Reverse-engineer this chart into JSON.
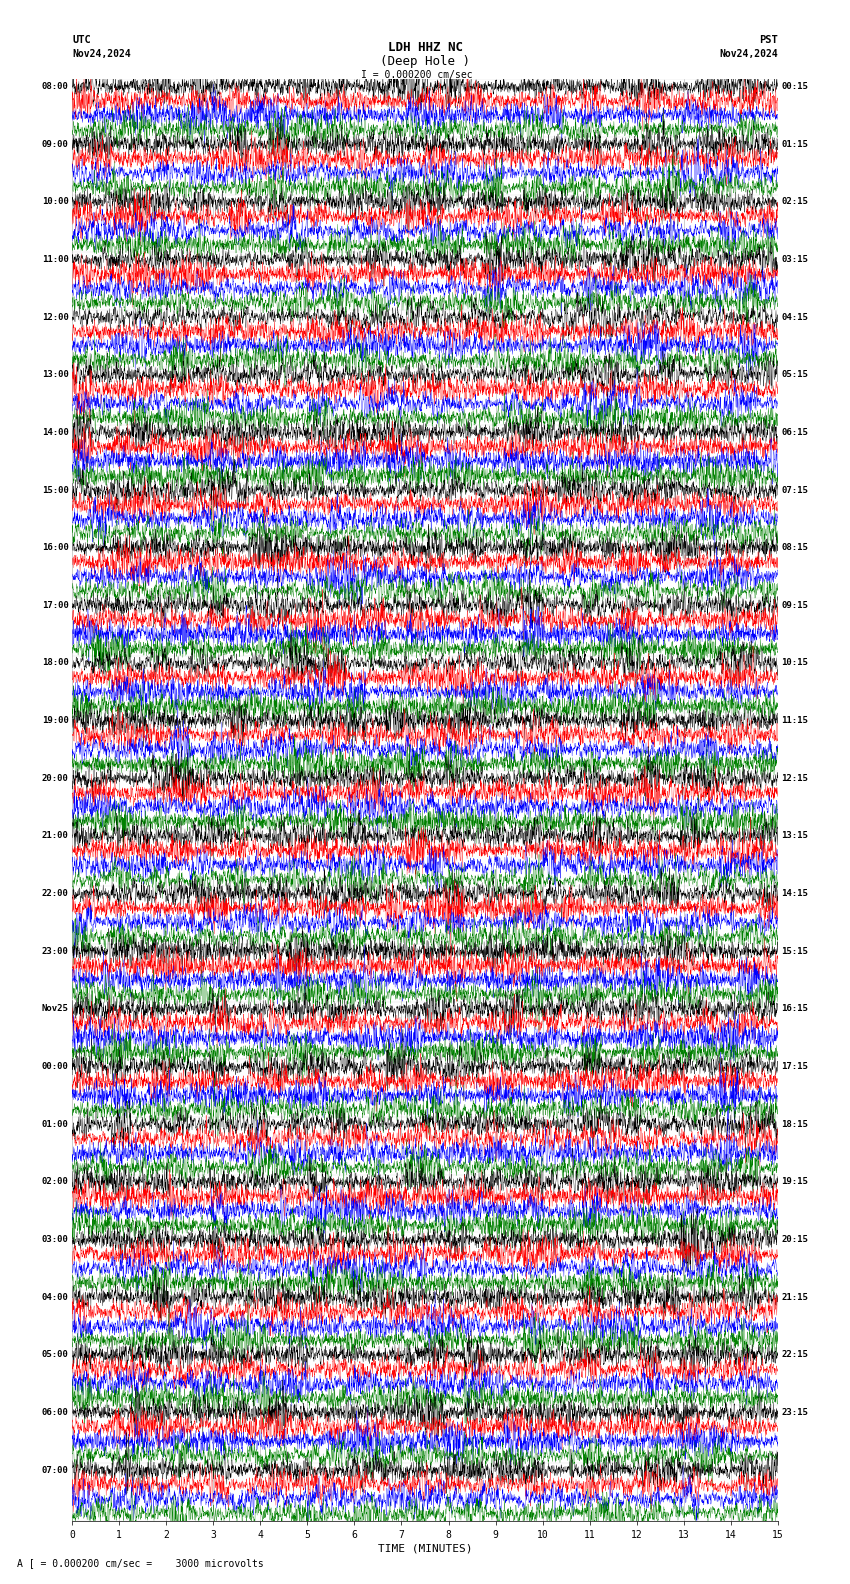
{
  "title_line1": "LDH HHZ NC",
  "title_line2": "(Deep Hole )",
  "scale_label": "I = 0.000200 cm/sec",
  "utc_label": "UTC",
  "pst_label": "PST",
  "date_left": "Nov24,2024",
  "date_right": "Nov24,2024",
  "bottom_label": "A [ = 0.000200 cm/sec =    3000 microvolts",
  "xlabel": "TIME (MINUTES)",
  "xticks": [
    0,
    1,
    2,
    3,
    4,
    5,
    6,
    7,
    8,
    9,
    10,
    11,
    12,
    13,
    14,
    15
  ],
  "colors": [
    "black",
    "red",
    "blue",
    "green"
  ],
  "left_times": [
    "08:00",
    "09:00",
    "10:00",
    "11:00",
    "12:00",
    "13:00",
    "14:00",
    "15:00",
    "16:00",
    "17:00",
    "18:00",
    "19:00",
    "20:00",
    "21:00",
    "22:00",
    "23:00",
    "Nov25",
    "00:00",
    "01:00",
    "02:00",
    "03:00",
    "04:00",
    "05:00",
    "06:00",
    "07:00"
  ],
  "right_times": [
    "00:15",
    "01:15",
    "02:15",
    "03:15",
    "04:15",
    "05:15",
    "06:15",
    "07:15",
    "08:15",
    "09:15",
    "10:15",
    "11:15",
    "12:15",
    "13:15",
    "14:15",
    "15:15",
    "16:15",
    "17:15",
    "18:15",
    "19:15",
    "20:15",
    "21:15",
    "22:15",
    "23:15"
  ],
  "n_rows": 25,
  "traces_per_row": 4,
  "n_points": 3600,
  "fig_width": 8.5,
  "fig_height": 15.84,
  "dpi": 100,
  "bg_color": "white",
  "seed": 42,
  "grid_color": "#aaaaaa",
  "grid_linewidth": 0.4
}
